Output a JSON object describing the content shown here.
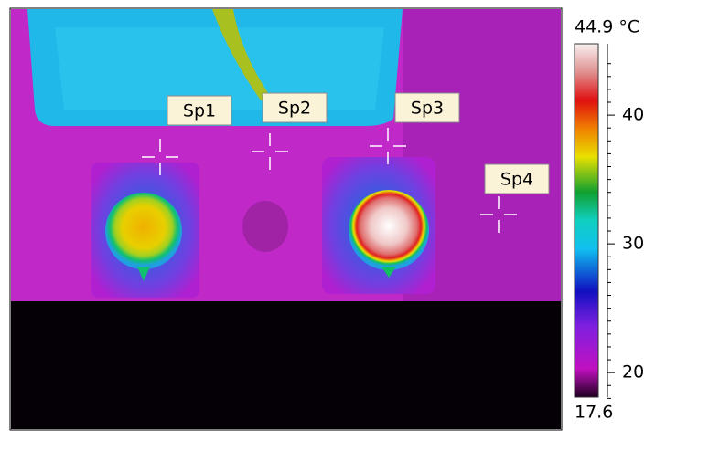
{
  "spots": [
    "Sp1",
    "Sp2",
    "Sp3",
    "Sp4"
  ],
  "scale": {
    "max": {
      "value": 44.9,
      "label": "44.9 °C"
    },
    "min": 17.6,
    "ticks": [
      20,
      30,
      40
    ]
  }
}
